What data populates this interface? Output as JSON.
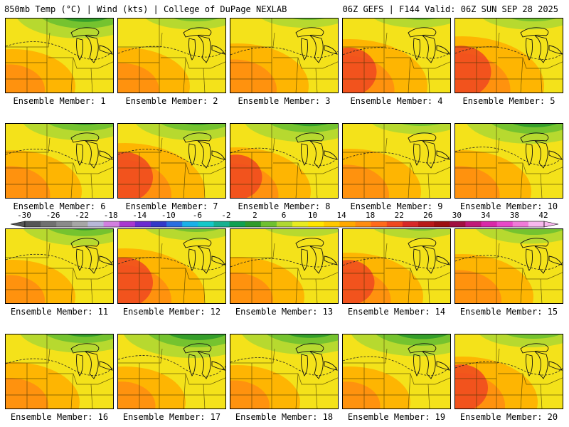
{
  "header": {
    "left_title": "850mb Temp (°C) | Wind (kts) | College of DuPage NEXLAB",
    "right_title": "06Z GEFS | F144 Valid: 06Z SUN SEP 28 2025"
  },
  "panels": [
    {
      "label": "Ensemble Member: 1",
      "icon": "temp-map"
    },
    {
      "label": "Ensemble Member: 2",
      "icon": "temp-map"
    },
    {
      "label": "Ensemble Member: 3",
      "icon": "temp-map"
    },
    {
      "label": "Ensemble Member: 4",
      "icon": "temp-map"
    },
    {
      "label": "Ensemble Member: 5",
      "icon": "temp-map"
    },
    {
      "label": "Ensemble Member: 6",
      "icon": "temp-map"
    },
    {
      "label": "Ensemble Member: 7",
      "icon": "temp-map"
    },
    {
      "label": "Ensemble Member: 8",
      "icon": "temp-map"
    },
    {
      "label": "Ensemble Member: 9",
      "icon": "temp-map"
    },
    {
      "label": "Ensemble Member: 10",
      "icon": "temp-map"
    },
    {
      "label": "Ensemble Member: 11",
      "icon": "temp-map"
    },
    {
      "label": "Ensemble Member: 12",
      "icon": "temp-map"
    },
    {
      "label": "Ensemble Member: 13",
      "icon": "temp-map"
    },
    {
      "label": "Ensemble Member: 14",
      "icon": "temp-map"
    },
    {
      "label": "Ensemble Member: 15",
      "icon": "temp-map"
    },
    {
      "label": "Ensemble Member: 16",
      "icon": "temp-map"
    },
    {
      "label": "Ensemble Member: 17",
      "icon": "temp-map"
    },
    {
      "label": "Ensemble Member: 18",
      "icon": "temp-map"
    },
    {
      "label": "Ensemble Member: 19",
      "icon": "temp-map"
    },
    {
      "label": "Ensemble Member: 20",
      "icon": "temp-map"
    }
  ],
  "colorbar": {
    "labels": [
      "-30",
      "-26",
      "-22",
      "-18",
      "-14",
      "-10",
      "-6",
      "-2",
      "2",
      "6",
      "10",
      "14",
      "18",
      "22",
      "26",
      "30",
      "34",
      "38",
      "42"
    ],
    "colors": [
      "#555555",
      "#707070",
      "#8a8a8a",
      "#a6a6a6",
      "#b8b8d8",
      "#d27fe0",
      "#a838d0",
      "#6a2bd0",
      "#3338c8",
      "#2a6ee0",
      "#1ab0e8",
      "#14c8c8",
      "#17b090",
      "#11a050",
      "#2f9a2a",
      "#6ec030",
      "#b0d832",
      "#e8ec22",
      "#ffe600",
      "#ffc800",
      "#ffa800",
      "#ff8c10",
      "#ff6a1a",
      "#f04820",
      "#d62828",
      "#b81818",
      "#9c1010",
      "#a01040",
      "#c01878",
      "#d828a8",
      "#e848c8",
      "#f07ad8",
      "#f8b8ee"
    ]
  }
}
